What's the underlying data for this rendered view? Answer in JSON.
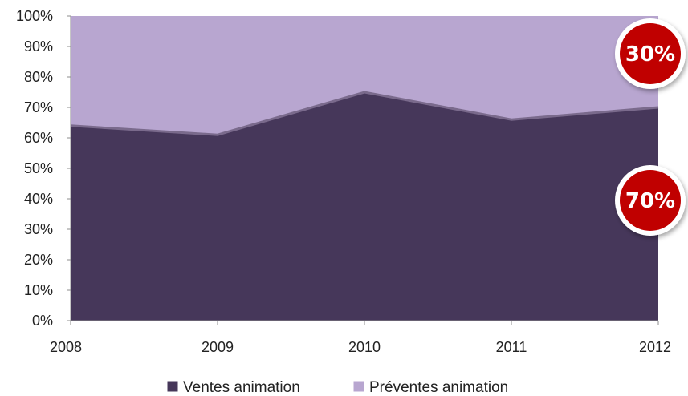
{
  "chart_data": {
    "type": "area",
    "stacked": true,
    "percent": true,
    "x": [
      "2008",
      "2009",
      "2010",
      "2011",
      "2012"
    ],
    "ylim": [
      0,
      100
    ],
    "y_ticks": [
      "0%",
      "10%",
      "20%",
      "30%",
      "40%",
      "50%",
      "60%",
      "70%",
      "80%",
      "90%",
      "100%"
    ],
    "series": [
      {
        "name": "Ventes animation",
        "values": [
          64,
          61,
          75,
          66,
          70
        ],
        "color": "#46375a"
      },
      {
        "name": "Préventes animation",
        "values": [
          36,
          39,
          25,
          34,
          30
        ],
        "color": "#b8a6d0"
      }
    ],
    "legend_position": "bottom",
    "grid": false,
    "annotations": [
      {
        "text": "30%",
        "series": "Préventes animation",
        "color": "#c00000"
      },
      {
        "text": "70%",
        "series": "Ventes animation",
        "color": "#c00000"
      }
    ]
  }
}
